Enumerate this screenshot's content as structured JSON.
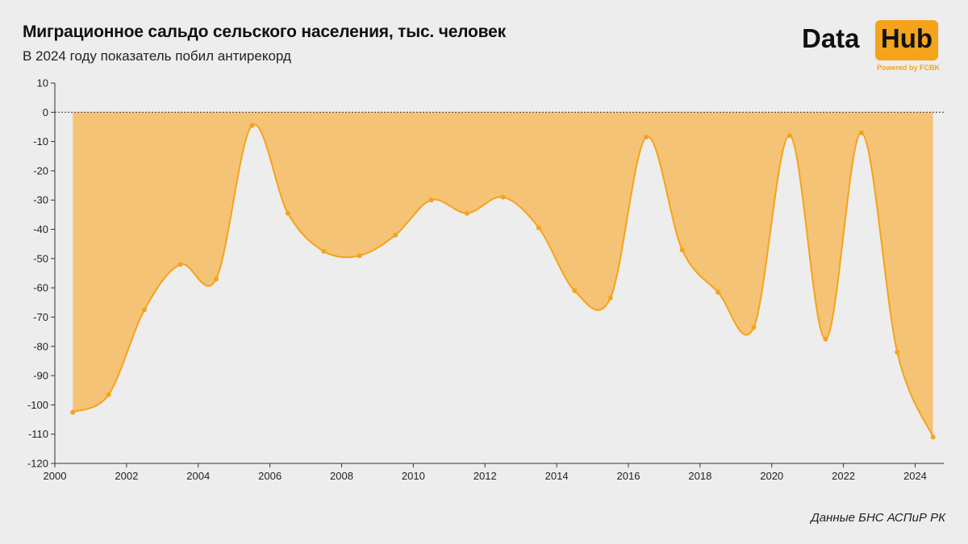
{
  "header": {
    "title": "Миграционное сальдо сельского населения, тыс. человек",
    "subtitle": "В 2024 году показатель побил антирекорд"
  },
  "logo": {
    "word_left": "Data",
    "word_right": "Hub",
    "powered": "Powered by FCBK",
    "accent_color": "#f5a31a"
  },
  "source": "Данные БНС АСПиР РК",
  "chart_data": {
    "type": "area",
    "title": "Миграционное сальдо сельского населения, тыс. человек",
    "subtitle": "В 2024 году показатель побил антирекорд",
    "xlabel": "",
    "ylabel": "",
    "xlim": [
      2000,
      2024.8
    ],
    "ylim": [
      -120,
      10
    ],
    "x_ticks": [
      2000,
      2002,
      2004,
      2006,
      2008,
      2010,
      2012,
      2014,
      2016,
      2018,
      2020,
      2022,
      2024
    ],
    "y_ticks": [
      10,
      0,
      -10,
      -20,
      -30,
      -40,
      -50,
      -60,
      -70,
      -80,
      -90,
      -100,
      -110,
      -120
    ],
    "zero_line": true,
    "grid": false,
    "fill_color": "#f5c376",
    "line_color": "#f5a31a",
    "x": [
      2000.5,
      2001.5,
      2002.5,
      2003.5,
      2004.5,
      2005.5,
      2006.5,
      2007.5,
      2008.5,
      2009.5,
      2010.5,
      2011.5,
      2012.5,
      2013.5,
      2014.5,
      2015.5,
      2016.5,
      2017.5,
      2018.5,
      2019.5,
      2020.5,
      2021.5,
      2022.5,
      2023.5,
      2024.5
    ],
    "values": [
      -102.5,
      -96.5,
      -67.5,
      -52,
      -57,
      -4.5,
      -34.5,
      -47.5,
      -49,
      -42,
      -30,
      -34.5,
      -29,
      -39.5,
      -61,
      -63.5,
      -8.5,
      -47,
      -61.5,
      -73.5,
      -8,
      -77.5,
      -7,
      -82,
      -111
    ]
  }
}
